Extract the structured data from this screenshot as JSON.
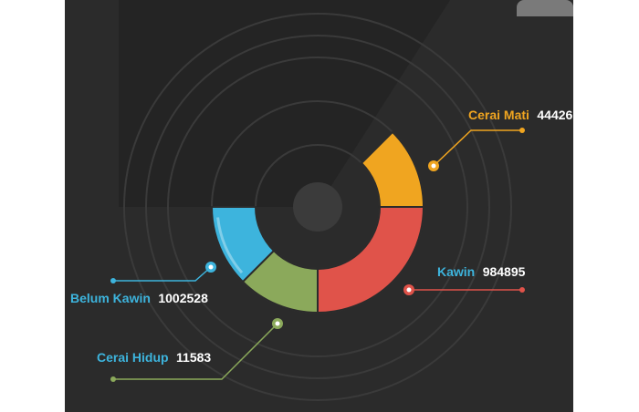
{
  "chart_data": {
    "type": "pie",
    "variant": "donut",
    "series": [
      {
        "name": "Cerai Mati",
        "value": 44426,
        "color": "#F0A520",
        "label_color": "#F0A520"
      },
      {
        "name": "Kawin",
        "value": 984895,
        "color": "#E0534A",
        "label_color": "#3DB4DD"
      },
      {
        "name": "Cerai Hidup",
        "value": 11583,
        "color": "#8BA95B",
        "label_color": "#3DB4DD"
      },
      {
        "name": "Belum Kawin",
        "value": 1002528,
        "color": "#3DB4DD",
        "label_color": "#3DB4DD"
      }
    ],
    "title": "",
    "legend": "callouts"
  },
  "colors": {
    "background": "#2b2b2b",
    "rings": "#3a3a3a",
    "shadow": "#222222",
    "hub": "#3b3b3b",
    "value_text": "#ffffff"
  }
}
